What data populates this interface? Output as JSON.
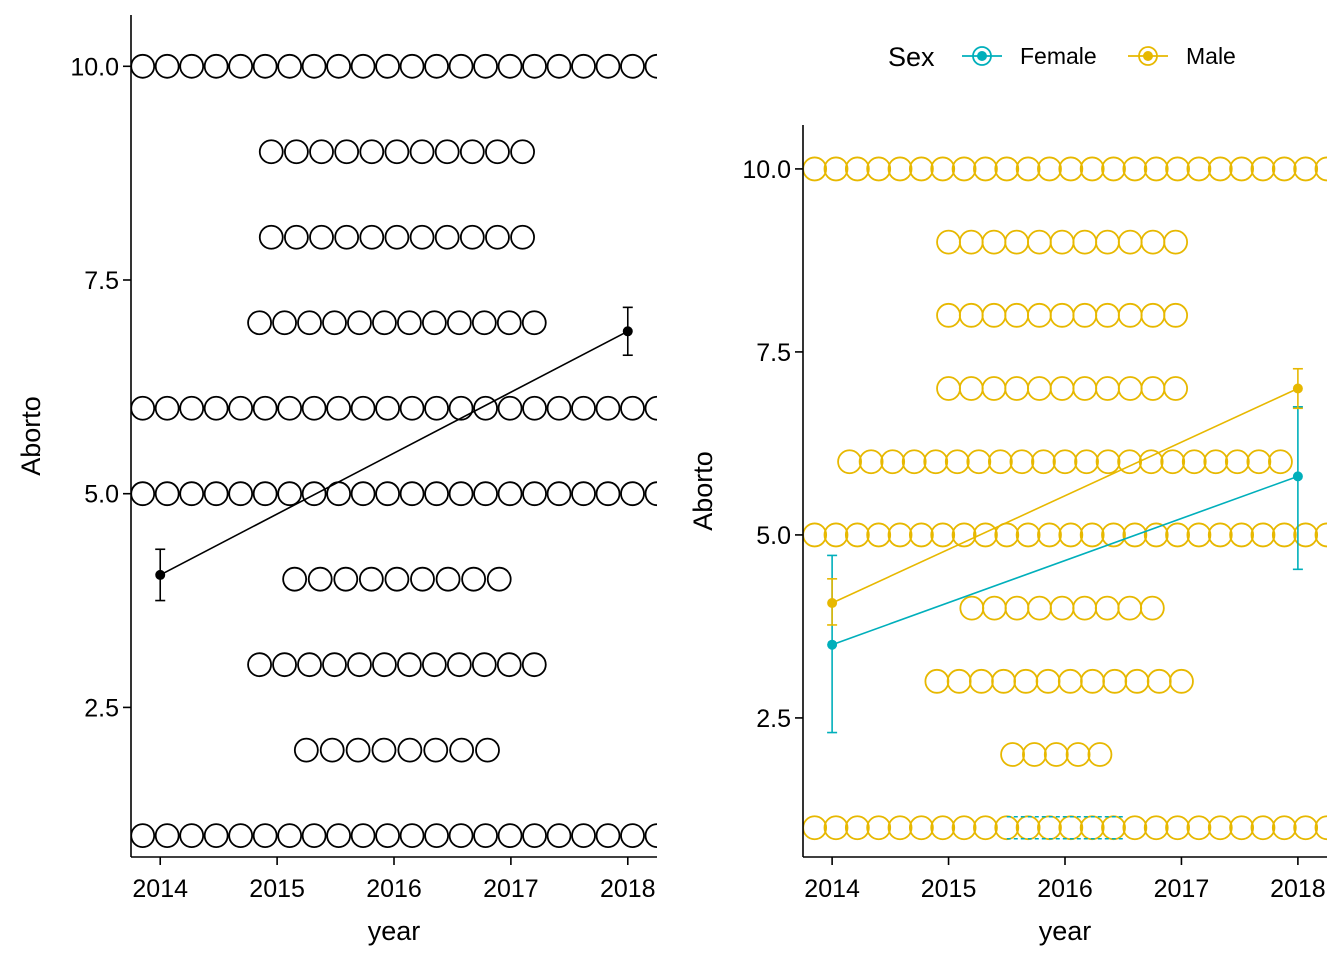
{
  "chart_data": [
    {
      "type": "scatter",
      "xlabel": "year",
      "ylabel": "Aborto",
      "xlim": [
        2013.75,
        2018.25
      ],
      "ylim": [
        0.75,
        10.6
      ],
      "x_ticks": [
        "2014",
        "2015",
        "2016",
        "2017",
        "2018"
      ],
      "y_ticks": [
        "2.5",
        "5.0",
        "7.5",
        "10.0"
      ],
      "grid": false,
      "legend": null,
      "jitter_rows": [
        {
          "y": 10,
          "x_from": 2013.85,
          "x_to": 2018.25,
          "count": 22
        },
        {
          "y": 9,
          "x_from": 2014.95,
          "x_to": 2017.1,
          "count": 11
        },
        {
          "y": 8,
          "x_from": 2014.95,
          "x_to": 2017.1,
          "count": 11
        },
        {
          "y": 7,
          "x_from": 2014.85,
          "x_to": 2017.2,
          "count": 12
        },
        {
          "y": 6,
          "x_from": 2013.85,
          "x_to": 2018.25,
          "count": 22
        },
        {
          "y": 5,
          "x_from": 2013.85,
          "x_to": 2018.25,
          "count": 22
        },
        {
          "y": 4,
          "x_from": 2015.15,
          "x_to": 2016.9,
          "count": 9
        },
        {
          "y": 3,
          "x_from": 2014.85,
          "x_to": 2017.2,
          "count": 12
        },
        {
          "y": 2,
          "x_from": 2015.25,
          "x_to": 2016.8,
          "count": 8
        },
        {
          "y": 1,
          "x_from": 2013.85,
          "x_to": 2018.25,
          "count": 22
        }
      ],
      "series": [
        {
          "color": "#000000",
          "points": [
            {
              "x": 2014,
              "y": 4.05,
              "lo": 3.75,
              "hi": 4.35
            },
            {
              "x": 2018,
              "y": 6.9,
              "lo": 6.62,
              "hi": 7.18
            }
          ]
        }
      ]
    },
    {
      "type": "scatter",
      "xlabel": "year",
      "ylabel": "Aborto",
      "xlim": [
        2013.75,
        2018.25
      ],
      "ylim": [
        0.6,
        10.6
      ],
      "x_ticks": [
        "2014",
        "2015",
        "2016",
        "2017",
        "2018"
      ],
      "y_ticks": [
        "2.5",
        "5.0",
        "7.5",
        "10.0"
      ],
      "grid": false,
      "legend": {
        "position": "top",
        "title": "Sex",
        "entries": [
          {
            "name": "Female",
            "color": "#00AFBB"
          },
          {
            "name": "Male",
            "color": "#E7B800"
          }
        ]
      },
      "jitter_color": "#E7B800",
      "jitter_rows": [
        {
          "y": 10,
          "x_from": 2013.85,
          "x_to": 2018.25,
          "count": 25
        },
        {
          "y": 9,
          "x_from": 2015.0,
          "x_to": 2016.95,
          "count": 11
        },
        {
          "y": 8,
          "x_from": 2015.0,
          "x_to": 2016.95,
          "count": 11
        },
        {
          "y": 7,
          "x_from": 2015.0,
          "x_to": 2016.95,
          "count": 11
        },
        {
          "y": 6,
          "x_from": 2014.15,
          "x_to": 2017.85,
          "count": 21
        },
        {
          "y": 5,
          "x_from": 2013.85,
          "x_to": 2018.25,
          "count": 25
        },
        {
          "y": 4,
          "x_from": 2015.2,
          "x_to": 2016.75,
          "count": 9
        },
        {
          "y": 3,
          "x_from": 2014.9,
          "x_to": 2017.0,
          "count": 12
        },
        {
          "y": 2,
          "x_from": 2015.55,
          "x_to": 2016.3,
          "count": 5
        },
        {
          "y": 1,
          "x_from": 2013.85,
          "x_to": 2018.25,
          "count": 25
        }
      ],
      "series": [
        {
          "name": "Female",
          "color": "#00AFBB",
          "points": [
            {
              "x": 2014,
              "y": 3.5,
              "lo": 2.3,
              "hi": 4.72
            },
            {
              "x": 2018,
              "y": 5.8,
              "lo": 4.53,
              "hi": 6.75
            }
          ]
        },
        {
          "name": "Male",
          "color": "#E7B800",
          "points": [
            {
              "x": 2014,
              "y": 4.07,
              "lo": 3.77,
              "hi": 4.4
            },
            {
              "x": 2018,
              "y": 7.0,
              "lo": 6.73,
              "hi": 7.27
            }
          ]
        }
      ],
      "note_female_bar_near_y": 1.0
    }
  ]
}
